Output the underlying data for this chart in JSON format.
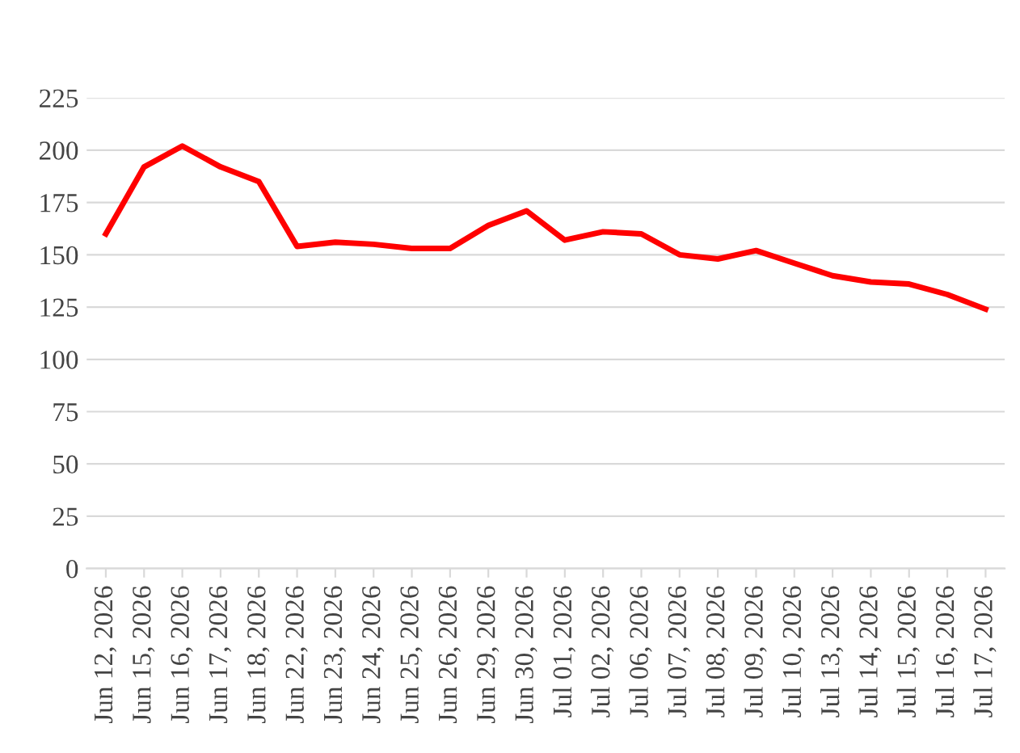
{
  "chart_data": {
    "type": "line",
    "categories": [
      "Jun 12, 2026",
      "Jun 15, 2026",
      "Jun 16, 2026",
      "Jun 17, 2026",
      "Jun 18, 2026",
      "Jun 22, 2026",
      "Jun 23, 2026",
      "Jun 24, 2026",
      "Jun 25, 2026",
      "Jun 26, 2026",
      "Jun 29, 2026",
      "Jun 30, 2026",
      "Jul 01, 2026",
      "Jul 02, 2026",
      "Jul 06, 2026",
      "Jul 07, 2026",
      "Jul 08, 2026",
      "Jul 09, 2026",
      "Jul 10, 2026",
      "Jul 13, 2026",
      "Jul 14, 2026",
      "Jul 15, 2026",
      "Jul 16, 2026",
      "Jul 17, 2026"
    ],
    "series": [
      {
        "color": "#ff0000",
        "values": [
          160,
          192,
          202,
          192,
          185,
          154,
          156,
          155,
          153,
          153,
          164,
          171,
          157,
          161,
          160,
          150,
          148,
          152,
          146,
          140,
          137,
          136,
          131,
          124
        ]
      }
    ],
    "ylim": [
      0,
      225
    ],
    "yticks": [
      0,
      25,
      50,
      75,
      100,
      125,
      150,
      175,
      200,
      225
    ],
    "grid": "y",
    "marker": "none",
    "line_style": "solid"
  }
}
